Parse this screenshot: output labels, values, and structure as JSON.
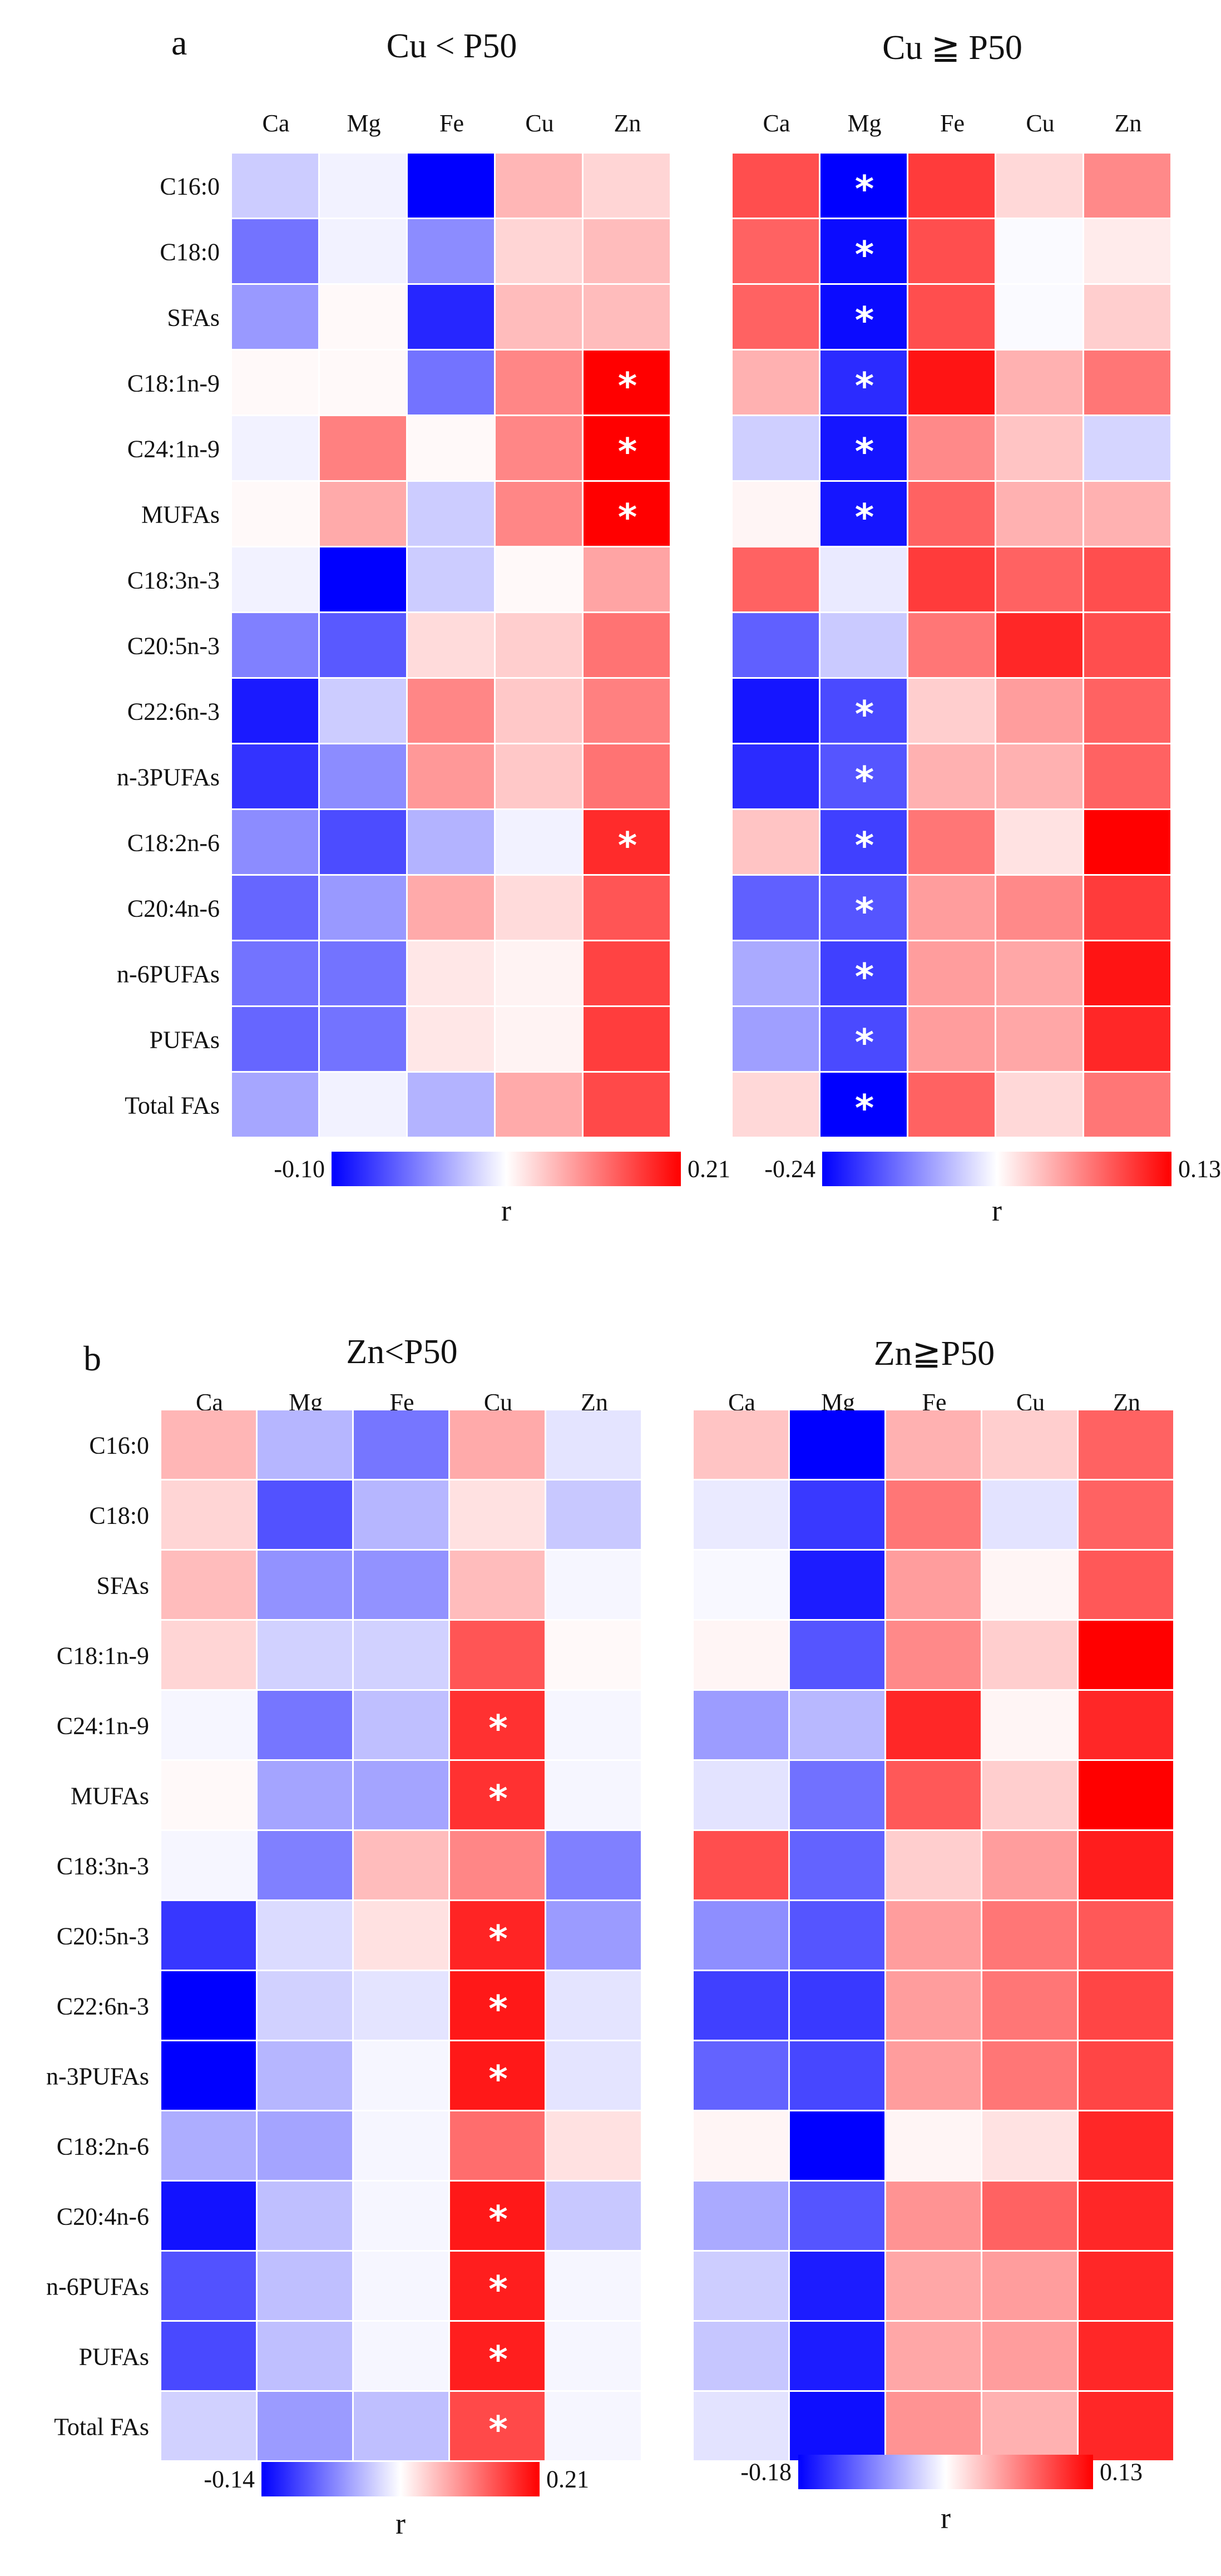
{
  "chart_data": [
    {
      "type": "heatmap",
      "panel": "a",
      "title": "Cu < P50",
      "columns": [
        "Ca",
        "Mg",
        "Fe",
        "Cu",
        "Zn"
      ],
      "rows": [
        "C16:0",
        "C18:0",
        "SFAs",
        "C18:1n-9",
        "C24:1n-9",
        "MUFAs",
        "C18:3n-3",
        "C20:5n-3",
        "C22:6n-3",
        "n-3PUFAs",
        "C18:2n-6",
        "C20:4n-6",
        "n-6PUFAs",
        "PUFAs",
        "Total FAs"
      ],
      "values": [
        [
          -0.02,
          -0.005,
          -0.1,
          0.06,
          0.035
        ],
        [
          -0.055,
          -0.005,
          -0.045,
          0.035,
          0.055
        ],
        [
          -0.04,
          0.005,
          -0.085,
          0.055,
          0.055
        ],
        [
          0.005,
          0.005,
          -0.055,
          0.1,
          0.21
        ],
        [
          -0.005,
          0.105,
          0.005,
          0.1,
          0.21
        ],
        [
          0.005,
          0.07,
          -0.02,
          0.1,
          0.21
        ],
        [
          -0.005,
          -0.1,
          -0.02,
          0.005,
          0.075
        ],
        [
          -0.05,
          -0.065,
          0.03,
          0.04,
          0.115
        ],
        [
          -0.09,
          -0.02,
          0.1,
          0.045,
          0.105
        ],
        [
          -0.08,
          -0.045,
          0.085,
          0.045,
          0.115
        ],
        [
          -0.045,
          -0.07,
          -0.03,
          -0.005,
          0.175
        ],
        [
          -0.06,
          -0.04,
          0.07,
          0.03,
          0.14
        ],
        [
          -0.055,
          -0.055,
          0.02,
          0.01,
          0.155
        ],
        [
          -0.06,
          -0.055,
          0.02,
          0.01,
          0.16
        ],
        [
          -0.035,
          -0.005,
          -0.03,
          0.07,
          0.15
        ]
      ],
      "significant": [
        [
          3,
          4
        ],
        [
          4,
          4
        ],
        [
          5,
          4
        ],
        [
          10,
          4
        ]
      ],
      "colorbar": {
        "min": -0.1,
        "max": 0.21,
        "min_label": "-0.10",
        "max_label": "0.21",
        "label": "r"
      }
    },
    {
      "type": "heatmap",
      "panel": "a",
      "title": "Cu ≧ P50",
      "columns": [
        "Ca",
        "Mg",
        "Fe",
        "Cu",
        "Zn"
      ],
      "rows": [
        "C16:0",
        "C18:0",
        "SFAs",
        "C18:1n-9",
        "C24:1n-9",
        "MUFAs",
        "C18:3n-3",
        "C20:5n-3",
        "C22:6n-3",
        "n-3PUFAs",
        "C18:2n-6",
        "C20:4n-6",
        "n-6PUFAs",
        "PUFAs",
        "Total FAs"
      ],
      "values": [
        [
          0.09,
          -0.24,
          0.1,
          0.02,
          0.06
        ],
        [
          0.08,
          -0.23,
          0.09,
          -0.005,
          0.01
        ],
        [
          0.08,
          -0.23,
          0.09,
          -0.005,
          0.025
        ],
        [
          0.04,
          -0.2,
          0.12,
          0.04,
          0.07
        ],
        [
          -0.045,
          -0.22,
          0.06,
          0.03,
          -0.04
        ],
        [
          0.005,
          -0.22,
          0.08,
          0.04,
          0.04
        ],
        [
          0.08,
          -0.02,
          0.1,
          0.08,
          0.09
        ],
        [
          -0.15,
          -0.05,
          0.07,
          0.11,
          0.09
        ],
        [
          -0.22,
          -0.17,
          0.025,
          0.05,
          0.08
        ],
        [
          -0.2,
          -0.16,
          0.04,
          0.04,
          0.08
        ],
        [
          0.03,
          -0.18,
          0.07,
          0.015,
          0.13
        ],
        [
          -0.15,
          -0.16,
          0.05,
          0.06,
          0.1
        ],
        [
          -0.08,
          -0.18,
          0.05,
          0.045,
          0.12
        ],
        [
          -0.09,
          -0.17,
          0.05,
          0.045,
          0.11
        ],
        [
          0.02,
          -0.24,
          0.08,
          0.02,
          0.07
        ]
      ],
      "significant": [
        [
          0,
          1
        ],
        [
          1,
          1
        ],
        [
          2,
          1
        ],
        [
          3,
          1
        ],
        [
          4,
          1
        ],
        [
          5,
          1
        ],
        [
          8,
          1
        ],
        [
          9,
          1
        ],
        [
          10,
          1
        ],
        [
          11,
          1
        ],
        [
          12,
          1
        ],
        [
          13,
          1
        ],
        [
          14,
          1
        ]
      ],
      "colorbar": {
        "min": -0.24,
        "max": 0.13,
        "min_label": "-0.24",
        "max_label": "0.13",
        "label": "r"
      }
    },
    {
      "type": "heatmap",
      "panel": "b",
      "title": "Zn<P50",
      "columns": [
        "Ca",
        "Mg",
        "Fe",
        "Cu",
        "Zn"
      ],
      "rows": [
        "C16:0",
        "C18:0",
        "SFAs",
        "C18:1n-9",
        "C24:1n-9",
        "MUFAs",
        "C18:3n-3",
        "C20:5n-3",
        "C22:6n-3",
        "n-3PUFAs",
        "C18:2n-6",
        "C20:4n-6",
        "n-6PUFAs",
        "PUFAs",
        "Total FAs"
      ],
      "values": [
        [
          0.06,
          -0.04,
          -0.075,
          0.07,
          -0.015
        ],
        [
          0.035,
          -0.095,
          -0.04,
          0.025,
          -0.03
        ],
        [
          0.055,
          -0.06,
          -0.06,
          0.055,
          -0.005
        ],
        [
          0.035,
          -0.025,
          -0.025,
          0.14,
          0.005
        ],
        [
          -0.005,
          -0.075,
          -0.035,
          0.17,
          -0.005
        ],
        [
          0.005,
          -0.05,
          -0.05,
          0.17,
          -0.005
        ],
        [
          -0.005,
          -0.07,
          0.055,
          0.1,
          -0.07
        ],
        [
          -0.11,
          -0.02,
          0.025,
          0.18,
          -0.055
        ],
        [
          -0.14,
          -0.025,
          -0.015,
          0.19,
          -0.015
        ],
        [
          -0.14,
          -0.04,
          -0.005,
          0.19,
          -0.015
        ],
        [
          -0.045,
          -0.05,
          -0.005,
          0.12,
          0.025
        ],
        [
          -0.13,
          -0.035,
          -0.005,
          0.19,
          -0.03
        ],
        [
          -0.095,
          -0.035,
          -0.005,
          0.185,
          -0.005
        ],
        [
          -0.1,
          -0.035,
          -0.005,
          0.185,
          -0.005
        ],
        [
          -0.025,
          -0.055,
          -0.035,
          0.15,
          -0.005
        ]
      ],
      "significant": [
        [
          4,
          3
        ],
        [
          5,
          3
        ],
        [
          7,
          3
        ],
        [
          8,
          3
        ],
        [
          9,
          3
        ],
        [
          11,
          3
        ],
        [
          12,
          3
        ],
        [
          13,
          3
        ],
        [
          14,
          3
        ]
      ],
      "colorbar": {
        "min": -0.14,
        "max": 0.21,
        "min_label": "-0.14",
        "max_label": "0.21",
        "label": "r"
      }
    },
    {
      "type": "heatmap",
      "panel": "b",
      "title": "Zn≧P50",
      "columns": [
        "Ca",
        "Mg",
        "Fe",
        "Cu",
        "Zn"
      ],
      "rows": [
        "C16:0",
        "C18:0",
        "SFAs",
        "C18:1n-9",
        "C24:1n-9",
        "MUFAs",
        "C18:3n-3",
        "C20:5n-3",
        "C22:6n-3",
        "n-3PUFAs",
        "C18:2n-6",
        "C20:4n-6",
        "n-6PUFAs",
        "PUFAs",
        "Total FAs"
      ],
      "values": [
        [
          0.03,
          -0.18,
          0.04,
          0.025,
          0.08
        ],
        [
          -0.015,
          -0.14,
          0.07,
          -0.02,
          0.08
        ],
        [
          -0.005,
          -0.16,
          0.05,
          0.005,
          0.085
        ],
        [
          0.005,
          -0.12,
          0.06,
          0.025,
          0.13
        ],
        [
          -0.07,
          -0.05,
          0.11,
          0.005,
          0.11
        ],
        [
          -0.02,
          -0.1,
          0.085,
          0.025,
          0.13
        ],
        [
          0.09,
          -0.11,
          0.025,
          0.05,
          0.115
        ],
        [
          -0.08,
          -0.12,
          0.05,
          0.07,
          0.085
        ],
        [
          -0.135,
          -0.14,
          0.05,
          0.07,
          0.095
        ],
        [
          -0.11,
          -0.13,
          0.05,
          0.07,
          0.095
        ],
        [
          0.005,
          -0.18,
          0.005,
          0.015,
          0.11
        ],
        [
          -0.06,
          -0.12,
          0.055,
          0.08,
          0.11
        ],
        [
          -0.035,
          -0.16,
          0.045,
          0.05,
          0.11
        ],
        [
          -0.04,
          -0.16,
          0.045,
          0.05,
          0.11
        ],
        [
          -0.02,
          -0.17,
          0.055,
          0.04,
          0.11
        ]
      ],
      "significant": [],
      "colorbar": {
        "min": -0.18,
        "max": 0.13,
        "min_label": "-0.18",
        "max_label": "0.13",
        "label": "r"
      }
    }
  ],
  "panel_letters": [
    "a",
    "b"
  ]
}
